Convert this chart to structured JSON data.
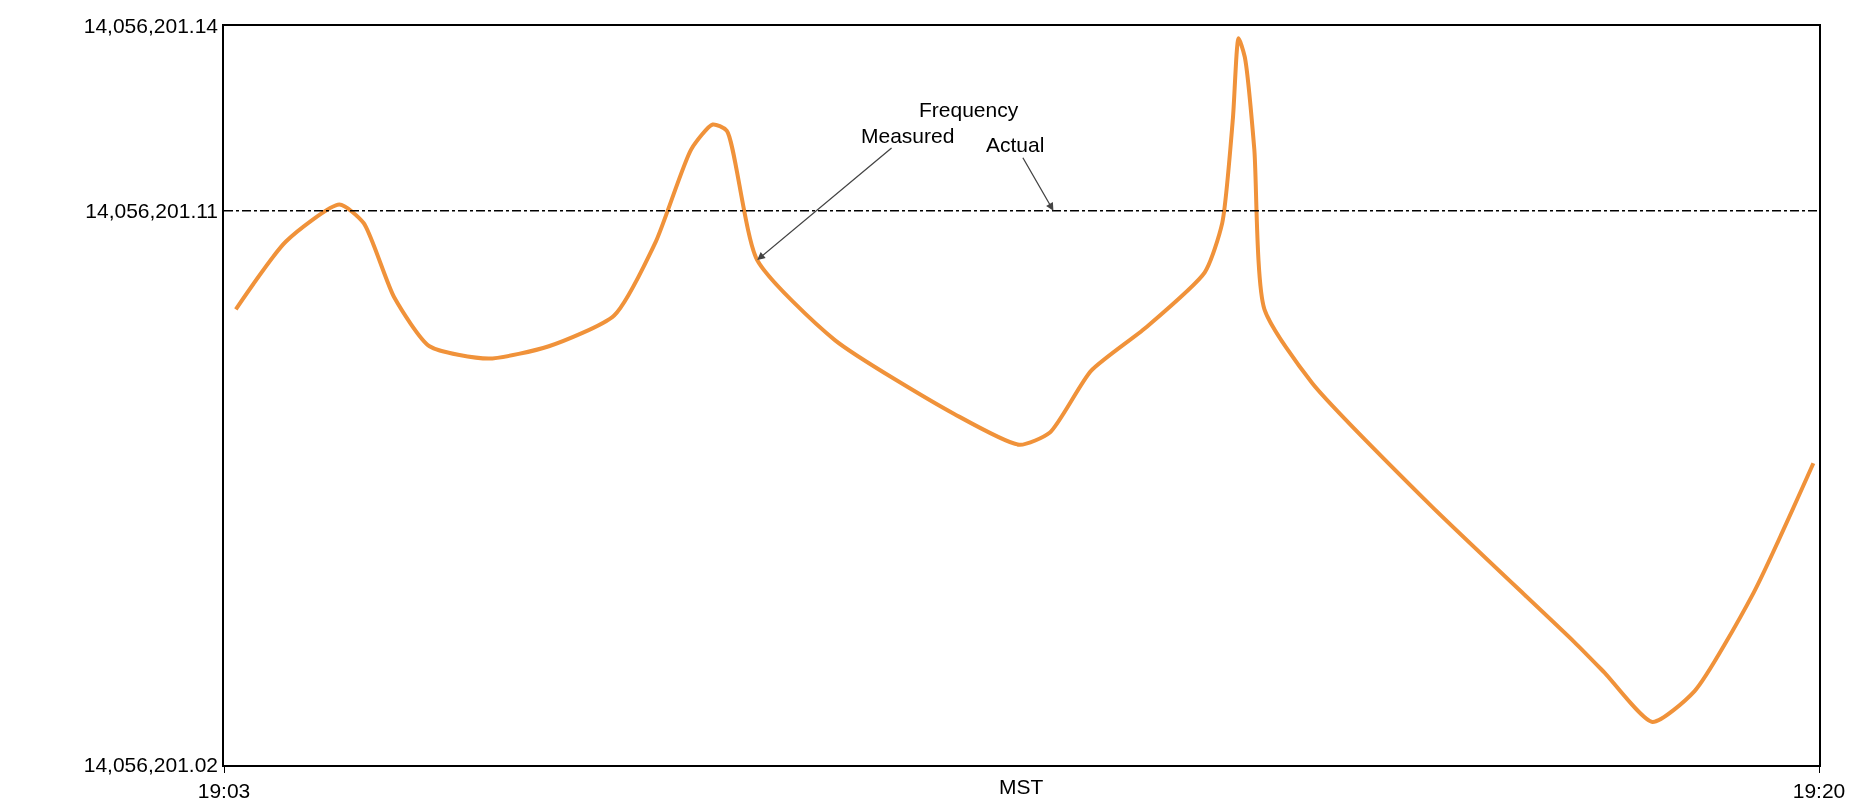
{
  "chart_data": {
    "type": "line",
    "xlabel": "MST",
    "x": [
      19.0521,
      19.061,
      19.0705,
      19.0748,
      19.0802,
      19.0865,
      19.097,
      19.1077,
      19.1193,
      19.1267,
      19.133,
      19.1368,
      19.1393,
      19.1447,
      19.1585,
      19.1797,
      19.1913,
      19.1967,
      19.204,
      19.2137,
      19.2242,
      19.2273,
      19.2292,
      19.2302,
      19.2313,
      19.233,
      19.2348,
      19.2433,
      19.2645,
      19.2898,
      19.2952,
      19.3037,
      19.3112,
      19.3217,
      19.3323
    ],
    "series": [
      {
        "color": "#f0923a",
        "values": [
          14056201.094,
          14056201.105,
          14056201.111,
          14056201.108,
          14056201.096,
          14056201.088,
          14056201.086,
          14056201.088,
          14056201.093,
          14056201.105,
          14056201.12,
          14056201.124,
          14056201.123,
          14056201.102,
          14056201.089,
          14056201.077,
          14056201.072,
          14056201.074,
          14056201.084,
          14056201.091,
          14056201.1,
          14056201.108,
          14056201.125,
          14056201.138,
          14056201.135,
          14056201.12,
          14056201.094,
          14056201.082,
          14056201.062,
          14056201.04,
          14056201.035,
          14056201.027,
          14056201.032,
          14056201.048,
          14056201.069
        ]
      }
    ],
    "xlim": [
      19.05,
      19.3333
    ],
    "xticks": [
      {
        "value": 19.05,
        "label": "19:03"
      },
      {
        "value": 19.3333,
        "label": "19:20"
      }
    ],
    "ylim": [
      14056201.02,
      14056201.14
    ],
    "yticks": [
      {
        "value": 14056201.02,
        "label": "14,056,201.02"
      },
      {
        "value": 14056201.11,
        "label": "14,056,201.11"
      },
      {
        "value": 14056201.14,
        "label": "14,056,201.14"
      }
    ],
    "ref_lines": [
      {
        "axis": "y",
        "value": 14056201.11,
        "label": "Actual",
        "color": "#000000",
        "line_style": "dashdot"
      }
    ],
    "annotations": [
      "Frequency",
      {
        "text": "Measured",
        "x": 19.1447,
        "y": 14056201.102
      }
    ],
    "grid": false,
    "marker": "none",
    "line_style": "solid"
  }
}
